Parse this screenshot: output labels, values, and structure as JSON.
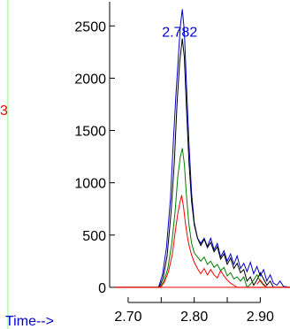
{
  "chart_data": {
    "type": "line",
    "xlabel": "Time-->",
    "ylabel": "",
    "title": "",
    "xlim": [
      2.68,
      2.945
    ],
    "ylim": [
      -60,
      2680
    ],
    "x_ticks": [
      2.7,
      2.75,
      2.8,
      2.85,
      2.9
    ],
    "x_tick_labels": [
      "2.70",
      "2.80",
      "2.90"
    ],
    "x_tick_label_values": [
      2.7,
      2.8,
      2.9
    ],
    "y_ticks": [
      0,
      500,
      1000,
      1500,
      2000,
      2500
    ],
    "y_tick_labels": [
      "0",
      "500",
      "1000",
      "1500",
      "2000",
      "2500"
    ],
    "peak_label": {
      "text": "2.782",
      "x": 2.782,
      "y": 2500
    },
    "side_fragment": "3",
    "grid": false,
    "legend": "none",
    "series": [
      {
        "color": "#0000cc",
        "points": [
          [
            2.68,
            0
          ],
          [
            2.746,
            0
          ],
          [
            2.752,
            120
          ],
          [
            2.758,
            380
          ],
          [
            2.764,
            850
          ],
          [
            2.768,
            1350
          ],
          [
            2.772,
            1800
          ],
          [
            2.776,
            2200
          ],
          [
            2.779,
            2500
          ],
          [
            2.782,
            2660
          ],
          [
            2.785,
            2450
          ],
          [
            2.788,
            1980
          ],
          [
            2.792,
            1380
          ],
          [
            2.796,
            900
          ],
          [
            2.8,
            620
          ],
          [
            2.805,
            470
          ],
          [
            2.81,
            420
          ],
          [
            2.815,
            470
          ],
          [
            2.82,
            390
          ],
          [
            2.825,
            470
          ],
          [
            2.83,
            360
          ],
          [
            2.835,
            420
          ],
          [
            2.84,
            290
          ],
          [
            2.845,
            350
          ],
          [
            2.85,
            250
          ],
          [
            2.855,
            320
          ],
          [
            2.86,
            220
          ],
          [
            2.865,
            300
          ],
          [
            2.87,
            180
          ],
          [
            2.875,
            230
          ],
          [
            2.88,
            150
          ],
          [
            2.885,
            240
          ],
          [
            2.89,
            130
          ],
          [
            2.895,
            200
          ],
          [
            2.9,
            110
          ],
          [
            2.905,
            170
          ],
          [
            2.91,
            60
          ],
          [
            2.915,
            120
          ],
          [
            2.92,
            40
          ],
          [
            2.925,
            20
          ],
          [
            2.93,
            60
          ],
          [
            2.935,
            10
          ],
          [
            2.945,
            0
          ]
        ]
      },
      {
        "color": "#000000",
        "points": [
          [
            2.68,
            0
          ],
          [
            2.747,
            0
          ],
          [
            2.753,
            90
          ],
          [
            2.759,
            300
          ],
          [
            2.765,
            720
          ],
          [
            2.77,
            1200
          ],
          [
            2.774,
            1750
          ],
          [
            2.778,
            2150
          ],
          [
            2.782,
            2380
          ],
          [
            2.785,
            2200
          ],
          [
            2.788,
            1750
          ],
          [
            2.792,
            1200
          ],
          [
            2.796,
            820
          ],
          [
            2.8,
            600
          ],
          [
            2.805,
            470
          ],
          [
            2.81,
            400
          ],
          [
            2.815,
            460
          ],
          [
            2.82,
            380
          ],
          [
            2.825,
            430
          ],
          [
            2.83,
            340
          ],
          [
            2.835,
            390
          ],
          [
            2.84,
            270
          ],
          [
            2.845,
            320
          ],
          [
            2.85,
            220
          ],
          [
            2.855,
            280
          ],
          [
            2.86,
            180
          ],
          [
            2.865,
            230
          ],
          [
            2.87,
            140
          ],
          [
            2.875,
            170
          ],
          [
            2.88,
            60
          ],
          [
            2.885,
            100
          ],
          [
            2.89,
            20
          ],
          [
            2.895,
            70
          ],
          [
            2.9,
            140
          ],
          [
            2.905,
            80
          ],
          [
            2.91,
            20
          ],
          [
            2.915,
            60
          ],
          [
            2.92,
            0
          ],
          [
            2.945,
            0
          ]
        ]
      },
      {
        "color": "#008000",
        "points": [
          [
            2.68,
            0
          ],
          [
            2.748,
            0
          ],
          [
            2.754,
            60
          ],
          [
            2.76,
            180
          ],
          [
            2.766,
            420
          ],
          [
            2.771,
            720
          ],
          [
            2.775,
            1050
          ],
          [
            2.779,
            1250
          ],
          [
            2.782,
            1330
          ],
          [
            2.785,
            1180
          ],
          [
            2.788,
            900
          ],
          [
            2.792,
            600
          ],
          [
            2.796,
            420
          ],
          [
            2.8,
            330
          ],
          [
            2.805,
            290
          ],
          [
            2.81,
            250
          ],
          [
            2.815,
            290
          ],
          [
            2.82,
            220
          ],
          [
            2.825,
            250
          ],
          [
            2.83,
            190
          ],
          [
            2.835,
            220
          ],
          [
            2.84,
            160
          ],
          [
            2.845,
            190
          ],
          [
            2.85,
            110
          ],
          [
            2.855,
            140
          ],
          [
            2.86,
            80
          ],
          [
            2.865,
            100
          ],
          [
            2.87,
            60
          ],
          [
            2.875,
            100
          ],
          [
            2.88,
            0
          ],
          [
            2.885,
            30
          ],
          [
            2.89,
            70
          ],
          [
            2.895,
            120
          ],
          [
            2.9,
            60
          ],
          [
            2.905,
            20
          ],
          [
            2.91,
            0
          ],
          [
            2.945,
            0
          ]
        ]
      },
      {
        "color": "#ff0000",
        "points": [
          [
            2.68,
            0
          ],
          [
            2.749,
            0
          ],
          [
            2.755,
            50
          ],
          [
            2.761,
            150
          ],
          [
            2.767,
            320
          ],
          [
            2.771,
            520
          ],
          [
            2.775,
            700
          ],
          [
            2.779,
            830
          ],
          [
            2.781,
            880
          ],
          [
            2.784,
            760
          ],
          [
            2.787,
            600
          ],
          [
            2.79,
            470
          ],
          [
            2.793,
            380
          ],
          [
            2.796,
            310
          ],
          [
            2.8,
            240
          ],
          [
            2.805,
            180
          ],
          [
            2.81,
            130
          ],
          [
            2.815,
            180
          ],
          [
            2.82,
            120
          ],
          [
            2.825,
            170
          ],
          [
            2.83,
            120
          ],
          [
            2.835,
            90
          ],
          [
            2.84,
            160
          ],
          [
            2.845,
            110
          ],
          [
            2.85,
            70
          ],
          [
            2.855,
            40
          ],
          [
            2.86,
            20
          ],
          [
            2.865,
            0
          ],
          [
            2.945,
            0
          ]
        ]
      },
      {
        "color": "#ff0000",
        "points": [
          [
            2.895,
            30
          ],
          [
            2.9,
            70
          ],
          [
            2.905,
            30
          ],
          [
            2.91,
            0
          ]
        ]
      },
      {
        "color": "#ff0000",
        "points": [
          [
            2.68,
            0
          ],
          [
            2.945,
            0
          ]
        ]
      }
    ]
  }
}
